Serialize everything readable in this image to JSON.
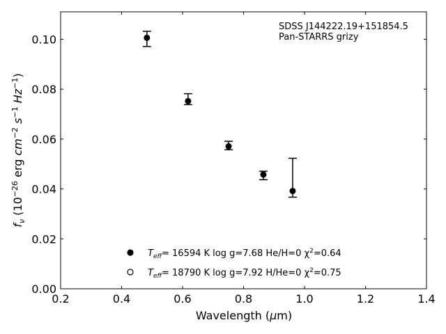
{
  "chart_data": {
    "type": "scatter",
    "title": "",
    "xlabel": "Wavelength (μm)",
    "ylabel": "f_ν (10^-26 erg cm^-2 s^-1 Hz^-1)",
    "xlim": [
      0.2,
      1.4
    ],
    "ylim": [
      0.0,
      0.111
    ],
    "grid": false,
    "xticks": [
      0.2,
      0.4,
      0.6,
      0.8,
      1.0,
      1.2,
      1.4
    ],
    "xtick_labels": [
      "0.2",
      "0.4",
      "0.6",
      "0.8",
      "1.0",
      "1.2",
      "1.4"
    ],
    "yticks": [
      0.0,
      0.02,
      0.04,
      0.06,
      0.08,
      0.1
    ],
    "ytick_labels": [
      "0.00",
      "0.02",
      "0.04",
      "0.06",
      "0.08",
      "0.10"
    ],
    "annotation": [
      "SDSS J144222.19+151854.5",
      "Pan-STARRS grizy"
    ],
    "points": [
      {
        "x": 0.483,
        "y": 0.1006,
        "ylow": 0.0971,
        "yhigh": 0.1032
      },
      {
        "x": 0.618,
        "y": 0.0752,
        "ylow": 0.0738,
        "yhigh": 0.0782
      },
      {
        "x": 0.751,
        "y": 0.0571,
        "ylow": 0.0557,
        "yhigh": 0.0591
      },
      {
        "x": 0.865,
        "y": 0.0458,
        "ylow": 0.0437,
        "yhigh": 0.0471
      },
      {
        "x": 0.961,
        "y": 0.0392,
        "ylow": 0.0367,
        "yhigh": 0.0523
      }
    ],
    "legend_position": "bottom-center",
    "legend": [
      {
        "marker": "filled-circle",
        "teff_label": "T",
        "teff_sub": "eff",
        "text": "= 16594 K  log g=7.68  He/H=0  χ",
        "chi_sup": "2",
        "chi_val": "=0.64"
      },
      {
        "marker": "open-circle",
        "teff_label": "T",
        "teff_sub": "eff",
        "text": "= 18790 K  log g=7.92  H/He=0  χ",
        "chi_sup": "2",
        "chi_val": "=0.75"
      }
    ]
  }
}
